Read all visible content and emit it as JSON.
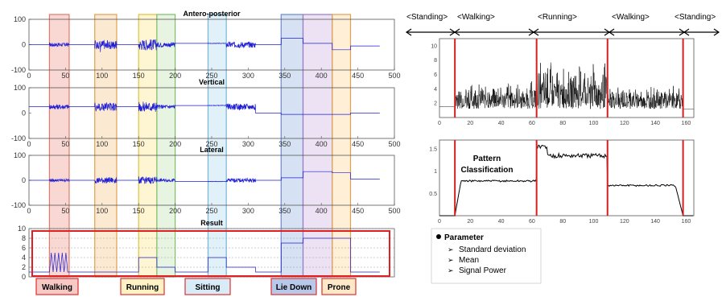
{
  "chart_data": [
    {
      "type": "line",
      "title": "Antero-posterior",
      "x_ticks": [
        "0",
        "50",
        "100",
        "150",
        "200",
        "250",
        "300",
        "350",
        "400",
        "450",
        "500"
      ],
      "y_ticks": [
        "100",
        "0",
        "-100"
      ],
      "xlim": [
        0,
        500
      ],
      "ylim": [
        -100,
        100
      ],
      "series": [
        {
          "color": "#1f1fd6",
          "segments": [
            {
              "x": [
                0,
                28
              ],
              "base": 0,
              "noise": 0
            },
            {
              "x": [
                28,
                55
              ],
              "base": 0,
              "noise": 8
            },
            {
              "x": [
                55,
                90
              ],
              "base": 0,
              "noise": 0
            },
            {
              "x": [
                90,
                120
              ],
              "base": 0,
              "noise": 18,
              "spikes": -35
            },
            {
              "x": [
                120,
                150
              ],
              "base": 0,
              "noise": 0
            },
            {
              "x": [
                150,
                175
              ],
              "base": 0,
              "noise": 22
            },
            {
              "x": [
                175,
                200
              ],
              "base": 0,
              "noise": 10
            },
            {
              "x": [
                200,
                245
              ],
              "base": 5,
              "noise": 0
            },
            {
              "x": [
                245,
                270
              ],
              "base": 5,
              "noise": 1
            },
            {
              "x": [
                270,
                310
              ],
              "base": 0,
              "noise": 12
            },
            {
              "x": [
                310,
                345
              ],
              "base": 0,
              "noise": 0
            },
            {
              "x": [
                345,
                375
              ],
              "base": 25,
              "noise": 0
            },
            {
              "x": [
                375,
                415
              ],
              "base": 5,
              "noise": 0
            },
            {
              "x": [
                415,
                440
              ],
              "base": -20,
              "noise": 0
            },
            {
              "x": [
                440,
                480
              ],
              "base": -5,
              "noise": 0
            }
          ]
        }
      ]
    },
    {
      "type": "line",
      "title": "Vertical",
      "x_ticks": [
        "0",
        "50",
        "100",
        "150",
        "200",
        "250",
        "300",
        "350",
        "400",
        "450",
        "500"
      ],
      "y_ticks": [
        "100",
        "0",
        "-100"
      ],
      "xlim": [
        0,
        500
      ],
      "ylim": [
        -100,
        100
      ],
      "series": [
        {
          "color": "#1f1fd6",
          "segments": [
            {
              "x": [
                0,
                28
              ],
              "base": 25,
              "noise": 0
            },
            {
              "x": [
                28,
                55
              ],
              "base": 25,
              "noise": 10
            },
            {
              "x": [
                55,
                90
              ],
              "base": 25,
              "noise": 0
            },
            {
              "x": [
                90,
                120
              ],
              "base": 25,
              "noise": 18,
              "spikes": -12
            },
            {
              "x": [
                120,
                150
              ],
              "base": 25,
              "noise": 0
            },
            {
              "x": [
                150,
                175
              ],
              "base": 25,
              "noise": 20
            },
            {
              "x": [
                175,
                200
              ],
              "base": 25,
              "noise": 8
            },
            {
              "x": [
                200,
                245
              ],
              "base": 30,
              "noise": 0
            },
            {
              "x": [
                245,
                270
              ],
              "base": 30,
              "noise": 1
            },
            {
              "x": [
                270,
                310
              ],
              "base": 25,
              "noise": 12
            },
            {
              "x": [
                310,
                345
              ],
              "base": 0,
              "noise": 0
            },
            {
              "x": [
                345,
                375
              ],
              "base": -5,
              "noise": 0
            },
            {
              "x": [
                375,
                415
              ],
              "base": -5,
              "noise": 0
            },
            {
              "x": [
                415,
                440
              ],
              "base": -5,
              "noise": 0
            },
            {
              "x": [
                440,
                480
              ],
              "base": 0,
              "noise": 0
            }
          ]
        }
      ]
    },
    {
      "type": "line",
      "title": "Lateral",
      "x_ticks": [
        "0",
        "50",
        "100",
        "150",
        "200",
        "250",
        "300",
        "350",
        "400",
        "450",
        "500"
      ],
      "y_ticks": [
        "100",
        "0",
        "-100"
      ],
      "xlim": [
        0,
        500
      ],
      "ylim": [
        -100,
        100
      ],
      "series": [
        {
          "color": "#1f1fd6",
          "segments": [
            {
              "x": [
                0,
                28
              ],
              "base": 0,
              "noise": 0
            },
            {
              "x": [
                28,
                55
              ],
              "base": 0,
              "noise": 6
            },
            {
              "x": [
                55,
                90
              ],
              "base": 0,
              "noise": 0
            },
            {
              "x": [
                90,
                120
              ],
              "base": 0,
              "noise": 12
            },
            {
              "x": [
                120,
                150
              ],
              "base": 0,
              "noise": 0
            },
            {
              "x": [
                150,
                175
              ],
              "base": 0,
              "noise": 14
            },
            {
              "x": [
                175,
                200
              ],
              "base": 0,
              "noise": 6
            },
            {
              "x": [
                200,
                245
              ],
              "base": -5,
              "noise": 0
            },
            {
              "x": [
                245,
                270
              ],
              "base": -5,
              "noise": 1
            },
            {
              "x": [
                270,
                310
              ],
              "base": 0,
              "noise": 8
            },
            {
              "x": [
                310,
                345
              ],
              "base": 0,
              "noise": 0
            },
            {
              "x": [
                345,
                375
              ],
              "base": 10,
              "noise": 0
            },
            {
              "x": [
                375,
                415
              ],
              "base": 35,
              "noise": 0
            },
            {
              "x": [
                415,
                440
              ],
              "base": 30,
              "noise": 0
            },
            {
              "x": [
                440,
                480
              ],
              "base": 5,
              "noise": 0
            }
          ]
        }
      ]
    },
    {
      "type": "line",
      "title": "Result",
      "x_ticks": [],
      "y_ticks": [
        "10",
        "8",
        "6",
        "4",
        "2",
        "0"
      ],
      "xlim": [
        0,
        500
      ],
      "ylim": [
        0,
        10
      ],
      "series": [
        {
          "color": "#1f1fd6",
          "segments": [
            {
              "x": [
                0,
                28
              ],
              "base": 1,
              "noise": 0
            },
            {
              "x": [
                28,
                55
              ],
              "base": 3,
              "noise": 0,
              "square": [
                1,
                5
              ]
            },
            {
              "x": [
                55,
                90
              ],
              "base": 1,
              "noise": 0
            },
            {
              "x": [
                90,
                120
              ],
              "base": 1,
              "noise": 0
            },
            {
              "x": [
                120,
                150
              ],
              "base": 1,
              "noise": 0
            },
            {
              "x": [
                150,
                175
              ],
              "base": 4,
              "noise": 0
            },
            {
              "x": [
                175,
                200
              ],
              "base": 2,
              "noise": 0
            },
            {
              "x": [
                200,
                245
              ],
              "base": 1,
              "noise": 0
            },
            {
              "x": [
                245,
                270
              ],
              "base": 4,
              "noise": 0
            },
            {
              "x": [
                270,
                310
              ],
              "base": 2,
              "noise": 0
            },
            {
              "x": [
                310,
                345
              ],
              "base": 1,
              "noise": 0
            },
            {
              "x": [
                345,
                375
              ],
              "base": 7,
              "noise": 0
            },
            {
              "x": [
                375,
                415
              ],
              "base": 8,
              "noise": 0
            },
            {
              "x": [
                415,
                440
              ],
              "base": 8,
              "noise": 0
            },
            {
              "x": [
                440,
                480
              ],
              "base": 1,
              "noise": 0
            }
          ]
        }
      ]
    },
    {
      "type": "line",
      "x_ticks": [
        "0",
        "20",
        "40",
        "60",
        "80",
        "100",
        "120",
        "140",
        "160"
      ],
      "y_ticks": [
        "10",
        "8",
        "6",
        "4",
        "2"
      ],
      "xlim": [
        0,
        165
      ],
      "ylim": [
        0,
        11
      ],
      "vlines": [
        10,
        63,
        109,
        158
      ],
      "series": [
        {
          "color": "#000000",
          "segments": [
            {
              "x": [
                0,
                10
              ],
              "base": 1.5,
              "noise": 0
            },
            {
              "x": [
                10,
                63
              ],
              "base": 2.6,
              "noise": 2.6
            },
            {
              "x": [
                63,
                109
              ],
              "base": 4.0,
              "noise": 3.8
            },
            {
              "x": [
                109,
                158
              ],
              "base": 2.4,
              "noise": 2.2
            },
            {
              "x": [
                158,
                165
              ],
              "base": 1.2,
              "noise": 0
            }
          ]
        }
      ]
    },
    {
      "type": "line",
      "x_ticks": [
        "0",
        "20",
        "40",
        "60",
        "80",
        "100",
        "120",
        "140",
        "160"
      ],
      "y_ticks": [
        "1.5",
        "1",
        "0.5"
      ],
      "xlim": [
        0,
        165
      ],
      "ylim": [
        0,
        1.7
      ],
      "vlines": [
        10,
        63,
        109,
        158
      ],
      "annotation": [
        "Pattern",
        "Classification"
      ],
      "series": [
        {
          "color": "#000000",
          "segments": [
            {
              "x": [
                0,
                10
              ],
              "base": 0.0,
              "noise": 0
            },
            {
              "x": [
                10,
                63
              ],
              "base": 0.78,
              "noise": 0.02
            },
            {
              "x": [
                63,
                109
              ],
              "base": 1.35,
              "noise": 0.05
            },
            {
              "x": [
                109,
                158
              ],
              "base": 0.68,
              "noise": 0.02
            },
            {
              "x": [
                158,
                165
              ],
              "base": 0.0,
              "noise": 0
            }
          ]
        }
      ]
    }
  ],
  "activity_regions": [
    {
      "from": 28,
      "to": 55,
      "fill": "#f7c9c4",
      "stroke": "#e07a6a"
    },
    {
      "from": 90,
      "to": 120,
      "fill": "#fbe2c2",
      "stroke": "#e0a050"
    },
    {
      "from": 150,
      "to": 175,
      "fill": "#fdf3c4",
      "stroke": "#e0c040"
    },
    {
      "from": 175,
      "to": 200,
      "fill": "#dff0d8",
      "stroke": "#7fbf6a"
    },
    {
      "from": 245,
      "to": 270,
      "fill": "#d7ecf7",
      "stroke": "#7ab4d8"
    },
    {
      "from": 345,
      "to": 375,
      "fill": "#c8d8f0",
      "stroke": "#6a8ac8"
    },
    {
      "from": 375,
      "to": 415,
      "fill": "#e6d8f0",
      "stroke": "#9a7ac8"
    },
    {
      "from": 415,
      "to": 440,
      "fill": "#fde9c8",
      "stroke": "#e0a050"
    }
  ],
  "activity_labels": [
    {
      "label": "Walking",
      "fill": "#f7c9c4"
    },
    {
      "label": "Running",
      "fill": "#fdf3c4"
    },
    {
      "label": "Sitting",
      "fill": "#d7ecf7"
    },
    {
      "label": "Lie Down",
      "fill": "#b8c8e8"
    },
    {
      "label": "Prone",
      "fill": "#fde9c8"
    }
  ],
  "phases": [
    "<Standing>",
    "<Walking>",
    "<Running>",
    "<Walking>",
    "<Standing>"
  ],
  "parameters": {
    "heading": "Parameter",
    "items": [
      "Standard deviation",
      "Mean",
      "Signal Power"
    ]
  },
  "colors": {
    "signal": "#1f1fd6",
    "boundary": "#d42020",
    "result_frame": "#e02020",
    "axis": "#555555",
    "grid": "#999999"
  }
}
